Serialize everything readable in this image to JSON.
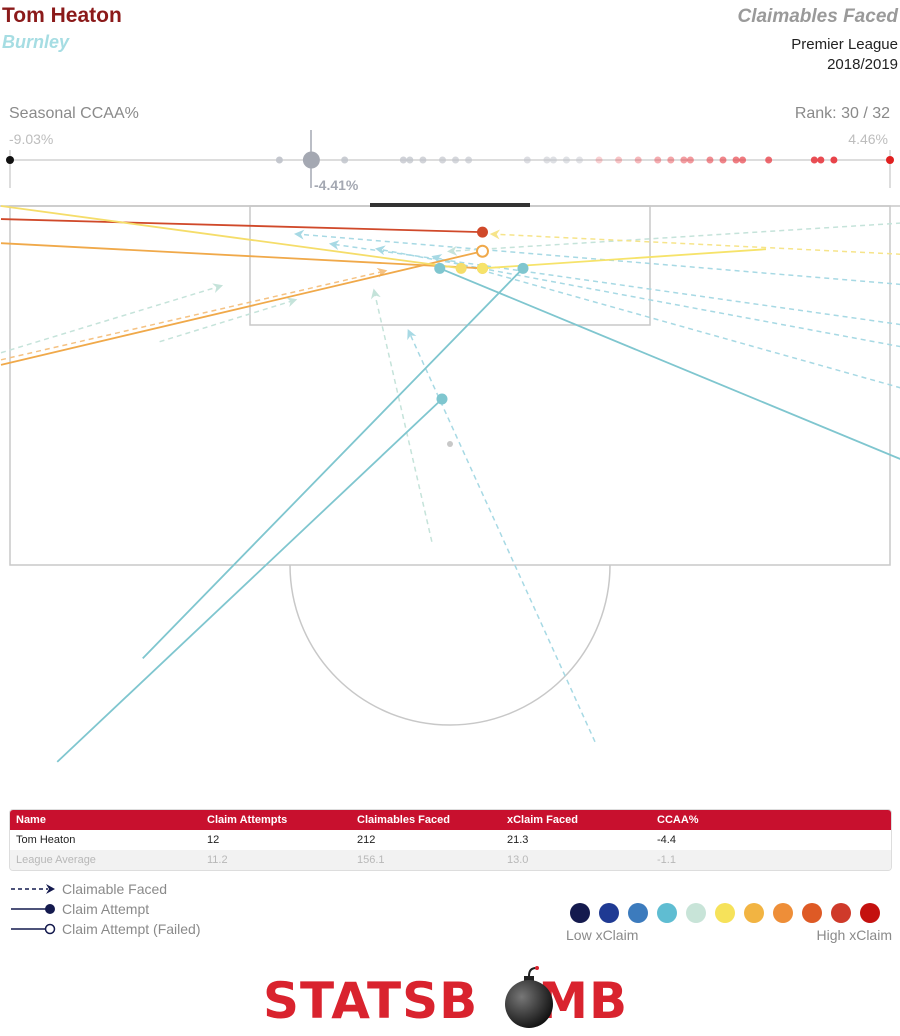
{
  "header": {
    "player": "Tom Heaton",
    "team": "Burnley",
    "title": "Claimables Faced",
    "league": "Premier League",
    "season": "2018/2019"
  },
  "rank_bar": {
    "label": "Seasonal CCAA%",
    "rank": "Rank: 30 / 32",
    "min_label": "-9.03%",
    "max_label": "4.46%",
    "player_label": "-4.41%",
    "min": -9.03,
    "max": 4.46,
    "player": -4.41,
    "others": [
      -4.9,
      -3.9,
      -3.0,
      -2.9,
      -2.7,
      -2.4,
      -2.2,
      -2.0,
      -1.1,
      -0.8,
      -0.7,
      -0.5,
      -0.3,
      0.0,
      0.3,
      0.6,
      0.9,
      1.1,
      1.3,
      1.4,
      1.7,
      1.9,
      2.1,
      2.2,
      2.6,
      3.3,
      3.4,
      3.6
    ],
    "colors": {
      "neutral": "#a4a8b2",
      "positive": "#e8434a",
      "min": "#111111",
      "max": "#e02020"
    }
  },
  "chart_data": {
    "type": "scatter",
    "title": "Claimables Faced",
    "description_units": "pitch coordinates: x 0-80 across width, y 0-35 from goal line",
    "pitch": {
      "x_range": [
        0,
        80
      ],
      "y_range": [
        0,
        37
      ]
    },
    "claimables_faced": [
      {
        "from": [
          14.1,
          13.5
        ],
        "to": [
          26.0,
          9.4
        ],
        "color": "#c5e3da"
      },
      {
        "from": [
          38.3,
          33.4
        ],
        "to": [
          33.2,
          8.6
        ],
        "color": "#c5e3da"
      },
      {
        "from": [
          80.0,
          1.7
        ],
        "to": [
          40.0,
          4.5
        ],
        "color": "#c5e3da"
      },
      {
        "from": [
          80.0,
          7.8
        ],
        "to": [
          26.4,
          2.8
        ],
        "color": "#a7d9e4"
      },
      {
        "from": [
          80.0,
          11.8
        ],
        "to": [
          29.5,
          3.8
        ],
        "color": "#a7d9e4"
      },
      {
        "from": [
          80.0,
          14.0
        ],
        "to": [
          33.6,
          4.3
        ],
        "color": "#a7d9e4"
      },
      {
        "from": [
          80.0,
          18.1
        ],
        "to": [
          38.6,
          5.1
        ],
        "color": "#a7d9e4"
      },
      {
        "from": [
          52.8,
          53.3
        ],
        "to": [
          36.3,
          12.6
        ],
        "color": "#a7d9e4"
      },
      {
        "from": [
          0.0,
          14.6
        ],
        "to": [
          19.4,
          8.0
        ],
        "color": "#c5e3da"
      },
      {
        "from": [
          80.0,
          4.8
        ],
        "to": [
          43.8,
          2.8
        ],
        "color": "#f6e48a"
      },
      {
        "from": [
          0.0,
          15.3
        ],
        "to": [
          34.0,
          6.5
        ],
        "color": "#f5c283"
      }
    ],
    "claim_attempts": [
      {
        "from": [
          0.0,
          1.3
        ],
        "to": [
          42.8,
          2.6
        ],
        "color": "#d0492a",
        "success": true
      },
      {
        "from": [
          0.0,
          3.7
        ],
        "to": [
          42.8,
          6.2
        ],
        "color": "#f0a94a",
        "success": true
      },
      {
        "from": [
          0.0,
          15.8
        ],
        "to": [
          42.8,
          4.5
        ],
        "color": "#f0a94a",
        "success": false
      },
      {
        "from": [
          68.0,
          4.3
        ],
        "to": [
          42.8,
          6.2
        ],
        "color": "#f6e36a",
        "success": true
      },
      {
        "from": [
          80.0,
          25.2
        ],
        "to": [
          39.0,
          6.2
        ],
        "color": "#7fc6cf",
        "success": true
      },
      {
        "from": [
          12.6,
          45.0
        ],
        "to": [
          46.4,
          6.2
        ],
        "color": "#7fc6cf",
        "success": true
      },
      {
        "from": [
          5.0,
          55.3
        ],
        "to": [
          39.2,
          19.2
        ],
        "color": "#7fc6cf",
        "success": true
      },
      {
        "from": [
          0.0,
          0.0
        ],
        "to": [
          40.9,
          6.2
        ],
        "color": "#f5dd6a",
        "success": true
      }
    ]
  },
  "table": {
    "headers": [
      "Name",
      "Claim Attempts",
      "Claimables Faced",
      "xClaim Faced",
      "CCAA%"
    ],
    "rows": [
      [
        "Tom Heaton",
        "12",
        "212",
        "21.3",
        "-4.4"
      ],
      [
        "League Average",
        "11.2",
        "156.1",
        "13.0",
        "-1.1"
      ]
    ]
  },
  "legend": {
    "faced": "Claimable Faced",
    "attempt": "Claim Attempt",
    "failed": "Claim Attempt (Failed)",
    "low": "Low xClaim",
    "high": "High xClaim",
    "scale_colors": [
      "#141a4e",
      "#1f3a93",
      "#3c7bbd",
      "#5fbdd2",
      "#c8e4d8",
      "#f6e25a",
      "#f2b442",
      "#ee8e38",
      "#de5a25",
      "#cf3a2a",
      "#c4110f"
    ]
  },
  "logo": {
    "text_left": "STATSB",
    "text_right": "MB"
  }
}
